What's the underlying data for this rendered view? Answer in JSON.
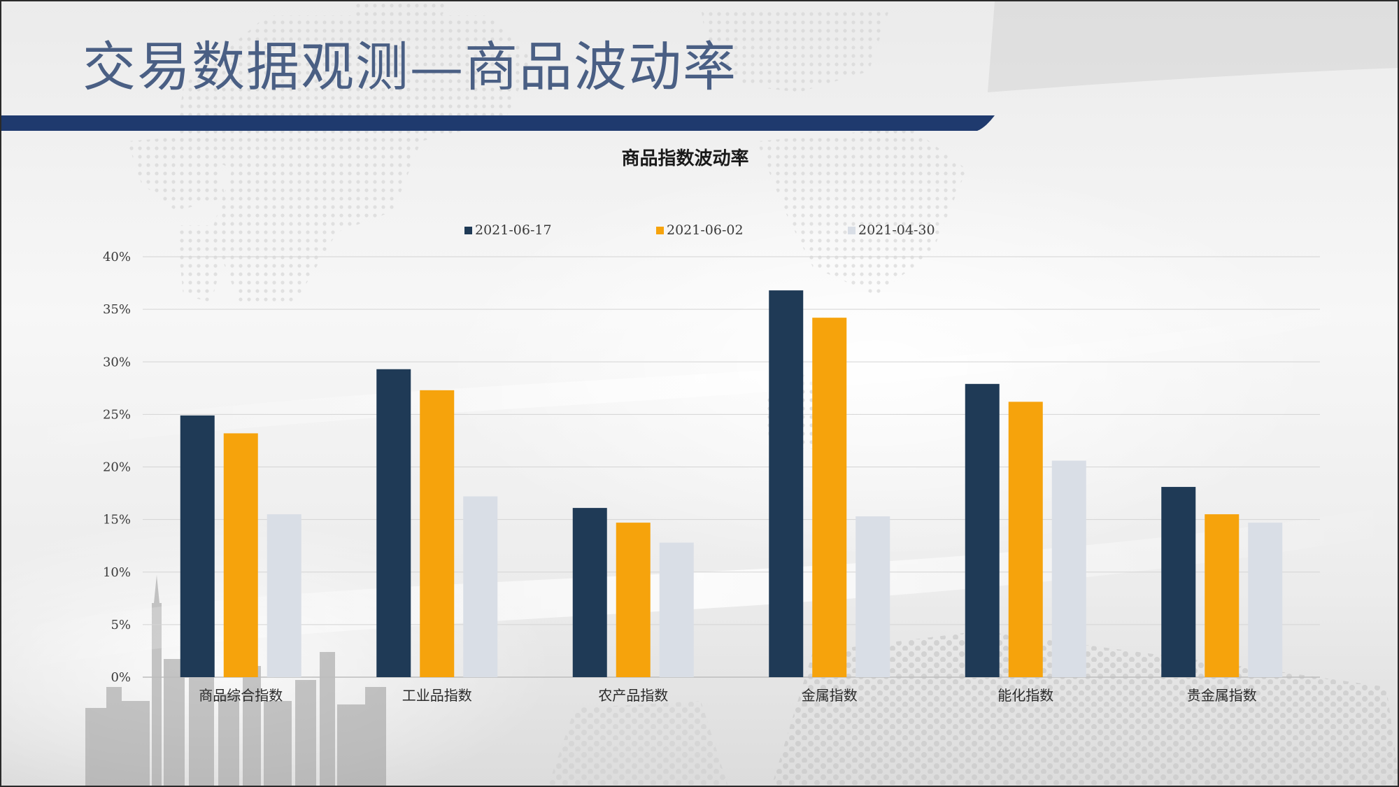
{
  "slide": {
    "title": "交易数据观测—商品波动率"
  },
  "colors": {
    "title_text": "#4a5f84",
    "title_band": "#1f3a6e",
    "series_1": "#1f3a56",
    "series_2": "#f6a30c",
    "series_3": "#d9dee6",
    "gridline": "#d4d4d4"
  },
  "chart_data": {
    "type": "bar",
    "title": "商品指数波动率",
    "xlabel": "",
    "ylabel": "",
    "ylim": [
      0,
      40
    ],
    "yticks": [
      "0%",
      "5%",
      "10%",
      "15%",
      "20%",
      "25%",
      "30%",
      "35%",
      "40%"
    ],
    "ytick_values": [
      0,
      5,
      10,
      15,
      20,
      25,
      30,
      35,
      40
    ],
    "grid": true,
    "legend_position": "top",
    "categories": [
      "商品综合指数",
      "工业品指数",
      "农产品指数",
      "金属指数",
      "能化指数",
      "贵金属指数"
    ],
    "series": [
      {
        "name": "2021-06-17",
        "color": "#1f3a56",
        "values": [
          24.9,
          29.3,
          16.1,
          36.8,
          27.9,
          18.1
        ]
      },
      {
        "name": "2021-06-02",
        "color": "#f6a30c",
        "values": [
          23.2,
          27.3,
          14.7,
          34.2,
          26.2,
          15.5
        ]
      },
      {
        "name": "2021-04-30",
        "color": "#d9dee6",
        "values": [
          15.5,
          17.2,
          12.8,
          15.3,
          20.6,
          14.7
        ]
      }
    ]
  }
}
